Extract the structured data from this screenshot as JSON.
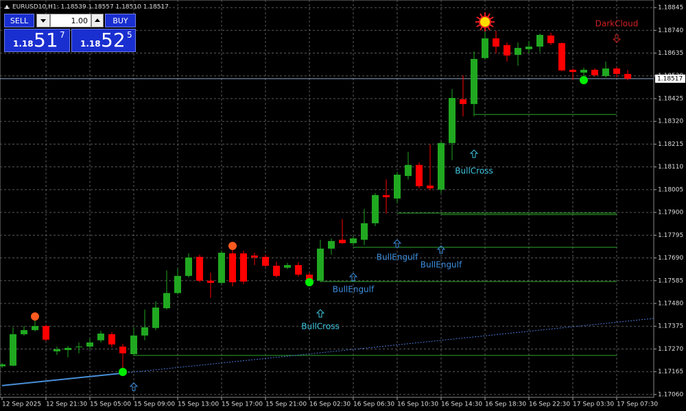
{
  "chart_data": {
    "type": "candlestick",
    "title": "EURUSD10,H1:  1.18539 1.18557 1.18510 1.18517",
    "categories": [
      "12 Sep 2025",
      null,
      null,
      null,
      "12 Sep 21:30",
      null,
      null,
      null,
      "15 Sep 05:00",
      null,
      null,
      null,
      "15 Sep 09:00",
      null,
      null,
      null,
      "15 Sep 13:00",
      null,
      null,
      null,
      "15 Sep 17:00",
      null,
      null,
      null,
      "15 Sep 21:00",
      null,
      null,
      null,
      "16 Sep 02:30",
      null,
      null,
      null,
      "16 Sep 06:30",
      null,
      null,
      null,
      "16 Sep 10:30",
      null,
      null,
      null,
      "16 Sep 14:30",
      null,
      null,
      null,
      "16 Sep 18:30",
      null,
      null,
      null,
      "16 Sep 22:30",
      null,
      null,
      null,
      "17 Sep 03:30",
      null,
      null,
      null,
      "17 Sep 07:30",
      null
    ],
    "open": [
      1.1719,
      1.17193,
      1.17338,
      1.17357,
      1.17376,
      1.17259,
      1.17265,
      1.17278,
      1.17281,
      1.1731,
      1.17338,
      1.17281,
      1.17246,
      1.17332,
      1.17367,
      1.17458,
      1.17528,
      1.17607,
      1.17695,
      1.17585,
      1.17575,
      1.17711,
      1.17711,
      1.17701,
      1.17695,
      1.17654,
      1.17645,
      1.17657,
      1.17613,
      1.17585,
      1.17733,
      1.17774,
      1.17758,
      1.17774,
      1.1785,
      1.1798,
      1.17964,
      1.18068,
      1.18119,
      1.18024,
      1.18005,
      1.1822,
      1.18422,
      1.184,
      1.18612,
      1.18703,
      1.18672,
      1.18627,
      1.18653,
      1.18665,
      1.18716,
      1.18681,
      1.18558,
      1.18545,
      1.18558,
      1.18529,
      1.18564,
      1.18539
    ],
    "high": [
      1.17205,
      1.1737,
      1.17376,
      1.1742,
      1.17382,
      1.17281,
      1.17284,
      1.173,
      1.17319,
      1.17354,
      1.17348,
      1.17294,
      1.1737,
      1.17452,
      1.1749,
      1.17632,
      1.17641,
      1.17711,
      1.17705,
      1.17622,
      1.17724,
      1.17743,
      1.17724,
      1.17714,
      1.17705,
      1.17673,
      1.17667,
      1.1767,
      1.17622,
      1.17774,
      1.1778,
      1.17869,
      1.1779,
      1.17916,
      1.17989,
      1.18052,
      1.18087,
      1.18179,
      1.18131,
      1.18213,
      1.18229,
      1.18469,
      1.18533,
      1.18643,
      1.18776,
      1.18738,
      1.18684,
      1.18684,
      1.18691,
      1.18725,
      1.18728,
      1.18684,
      1.18564,
      1.18567,
      1.18564,
      1.18596,
      1.1857,
      1.18557
    ],
    "low": [
      1.17183,
      1.1719,
      1.17332,
      1.17351,
      1.17306,
      1.17243,
      1.17231,
      1.1725,
      1.17269,
      1.173,
      1.17278,
      1.17174,
      1.17237,
      1.1731,
      1.17357,
      1.17452,
      1.17521,
      1.176,
      1.17578,
      1.17506,
      1.17569,
      1.17559,
      1.17569,
      1.17657,
      1.17648,
      1.176,
      1.17638,
      1.17604,
      1.17578,
      1.17578,
      1.17705,
      1.17755,
      1.17746,
      1.17749,
      1.17837,
      1.17894,
      1.17942,
      1.18052,
      1.18011,
      1.18002,
      1.17989,
      1.18141,
      1.18343,
      1.18343,
      1.18605,
      1.18634,
      1.18596,
      1.18577,
      1.18634,
      1.1864,
      1.18672,
      1.18552,
      1.1851,
      1.1851,
      1.18526,
      1.18523,
      1.18523,
      1.1851
    ],
    "close": [
      1.17199,
      1.17338,
      1.17357,
      1.17376,
      1.17313,
      1.17269,
      1.17275,
      1.17281,
      1.173,
      1.17341,
      1.17291,
      1.1725,
      1.17332,
      1.1737,
      1.17461,
      1.17528,
      1.17607,
      1.17692,
      1.17585,
      1.17575,
      1.17714,
      1.17578,
      1.17581,
      1.17692,
      1.17654,
      1.17607,
      1.17657,
      1.17613,
      1.17588,
      1.17733,
      1.17768,
      1.17758,
      1.1778,
      1.1785,
      1.1798,
      1.1797,
      1.18074,
      1.18119,
      1.18021,
      1.18011,
      1.1822,
      1.18428,
      1.184,
      1.18608,
      1.18703,
      1.18665,
      1.18624,
      1.18659,
      1.18665,
      1.18719,
      1.18681,
      1.18555,
      1.18548,
      1.18558,
      1.18533,
      1.18564,
      1.18539,
      1.18517
    ],
    "up_color": "#21a821",
    "down_color": "#ff0000",
    "ylim": [
      1.17047,
      1.1888
    ],
    "yticks": [
      1.18845,
      {
        "value": 1.1874,
        "label": "1.18740"
      },
      1.18635,
      {
        "value": 1.1853,
        "label": "1.18530"
      },
      1.18425,
      {
        "value": 1.1832,
        "label": "1.18320"
      },
      1.18215,
      {
        "value": 1.1811,
        "label": "1.18110"
      },
      1.18005,
      {
        "value": 1.179,
        "label": "1.17900"
      },
      1.17795,
      {
        "value": 1.1769,
        "label": "1.17690"
      },
      1.17585,
      {
        "value": 1.1748,
        "label": "1.17480"
      },
      1.17375,
      {
        "value": 1.1727,
        "label": "1.17270"
      },
      1.17165,
      {
        "value": 1.1706,
        "label": "1.17060"
      }
    ],
    "grid": true,
    "bid": 1.18517,
    "levels": [
      {
        "value": 1.18352,
        "from": 43
      },
      {
        "value": 1.17897,
        "from": 36
      },
      {
        "value": 1.1789,
        "from": 40
      },
      {
        "value": 1.17739,
        "from": 32
      },
      {
        "value": 1.17581,
        "from": 29
      },
      {
        "value": 1.1724,
        "from": 12
      }
    ],
    "trendline": {
      "start": 1.17101,
      "end": 1.17411
    },
    "signals": [
      {
        "index": 12,
        "direction": "up",
        "color": "#3d8fe0"
      },
      {
        "index": 29,
        "label": "BullCross",
        "direction": "up",
        "color": "#3ec6e0"
      },
      {
        "index": 32,
        "label": "BullEngulf",
        "direction": "up",
        "color": "#3d8fe0"
      },
      {
        "index": 36,
        "label": "BullEngulf",
        "direction": "up",
        "color": "#3d8fe0"
      },
      {
        "index": 40,
        "label": "BullEngulf",
        "direction": "up",
        "color": "#3d8fe0"
      },
      {
        "index": 43,
        "label": "BullCross",
        "direction": "up",
        "color": "#3ec6e0"
      },
      {
        "index": 56,
        "label": "DarkCloud",
        "direction": "down",
        "color": "#d02020"
      }
    ],
    "markers": [
      {
        "index": 3,
        "color": "#ff5a1f"
      },
      {
        "index": 21,
        "color": "#ff5a1f"
      },
      {
        "index": 44,
        "color": "#ffdd00"
      },
      {
        "index": 11,
        "color": "#00ee00"
      },
      {
        "index": 28,
        "color": "#00ee00"
      },
      {
        "index": 53,
        "color": "#00ee00"
      }
    ]
  },
  "trade_panel": {
    "sell": "SELL",
    "buy": "BUY",
    "lot": "1.00",
    "sell_price": {
      "big": "1.18",
      "pips": "51",
      "point": "7"
    },
    "buy_price": {
      "big": "1.18",
      "pips": "52",
      "point": "5"
    }
  }
}
